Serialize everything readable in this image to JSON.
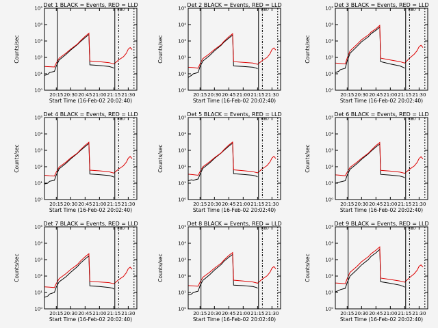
{
  "chart_data": {
    "type": "line",
    "layout": "3x3 grid of panels",
    "yscale": "log",
    "ylim": [
      1,
      100000
    ],
    "ytick_labels": [
      "10⁰",
      "10¹",
      "10²",
      "10³",
      "10⁴",
      "10⁵"
    ],
    "xtick_labels": [
      "20:15",
      "20:30",
      "20:45",
      "21:00",
      "21:15",
      "21:30"
    ],
    "xlabel": "Start Time (16-Feb-02 20:02:40)",
    "ylabel": "Counts/sec",
    "marker_labels": [
      "ED",
      "ED"
    ],
    "colors": {
      "events": "#000000",
      "lld": "#dd0000",
      "axes": "#000000",
      "background": "#f4f4f4"
    },
    "panels": [
      {
        "title": "Det 1 BLACK = Events, RED = LLD",
        "series": [
          {
            "name": "BLACK = Events",
            "color": "#000000",
            "x": [
              "20:02:40",
              "20:06",
              "20:08",
              "20:13",
              "20:15",
              "20:18",
              "20:25",
              "20:30",
              "20:37",
              "20:40",
              "20:45",
              "20:49",
              "20:50",
              "21:00",
              "21:10",
              "21:14",
              "21:15"
            ],
            "y": [
              8,
              9,
              12,
              14,
              30,
              70,
              150,
              280,
              600,
              900,
              1600,
              2500,
              35,
              32,
              28,
              24,
              22
            ]
          },
          {
            "name": "RED = LLD",
            "color": "#dd0000",
            "x": [
              "20:02:40",
              "20:08",
              "20:13",
              "20:15",
              "20:18",
              "20:25",
              "20:30",
              "20:37",
              "20:40",
              "20:45",
              "20:49",
              "20:50",
              "21:00",
              "21:10",
              "21:15",
              "21:20",
              "21:25",
              "21:28",
              "21:30",
              "21:32",
              "21:34"
            ],
            "y": [
              28,
              27,
              26,
              45,
              90,
              180,
              320,
              650,
              1000,
              1900,
              3000,
              60,
              55,
              48,
              40,
              70,
              110,
              180,
              320,
              400,
              300
            ]
          }
        ]
      },
      {
        "title": "Det 2 BLACK = Events, RED = LLD",
        "series": [
          {
            "name": "BLACK = Events",
            "color": "#000000",
            "x": [
              "20:02:40",
              "20:06",
              "20:08",
              "20:13",
              "20:15",
              "20:18",
              "20:25",
              "20:30",
              "20:37",
              "20:40",
              "20:45",
              "20:49",
              "20:50",
              "21:00",
              "21:10",
              "21:14",
              "21:15"
            ],
            "y": [
              6,
              8,
              10,
              12,
              28,
              60,
              130,
              250,
              550,
              850,
              1500,
              2300,
              30,
              28,
              25,
              22,
              20
            ]
          },
          {
            "name": "RED = LLD",
            "color": "#dd0000",
            "x": [
              "20:02:40",
              "20:08",
              "20:13",
              "20:15",
              "20:18",
              "20:25",
              "20:30",
              "20:37",
              "20:40",
              "20:45",
              "20:49",
              "20:50",
              "21:00",
              "21:10",
              "21:15",
              "21:20",
              "21:25",
              "21:28",
              "21:30",
              "21:32",
              "21:34"
            ],
            "y": [
              25,
              24,
              22,
              40,
              85,
              170,
              300,
              600,
              950,
              1800,
              2800,
              55,
              50,
              45,
              38,
              65,
              100,
              170,
              300,
              380,
              280
            ]
          }
        ]
      },
      {
        "title": "Det 3 BLACK = Events, RED = LLD",
        "series": [
          {
            "name": "BLACK = Events",
            "color": "#000000",
            "x": [
              "20:02:40",
              "20:06",
              "20:08",
              "20:13",
              "20:15",
              "20:18",
              "20:25",
              "20:30",
              "20:37",
              "20:40",
              "20:45",
              "20:49",
              "20:50",
              "21:00",
              "21:10",
              "21:14",
              "21:15"
            ],
            "y": [
              12,
              14,
              18,
              22,
              60,
              180,
              450,
              900,
              1800,
              2800,
              4500,
              7000,
              55,
              40,
              30,
              24,
              22
            ]
          },
          {
            "name": "RED = LLD",
            "color": "#dd0000",
            "x": [
              "20:02:40",
              "20:08",
              "20:13",
              "20:15",
              "20:18",
              "20:25",
              "20:30",
              "20:37",
              "20:40",
              "20:45",
              "20:49",
              "20:50",
              "21:00",
              "21:10",
              "21:15",
              "21:20",
              "21:25",
              "21:28",
              "21:30",
              "21:32",
              "21:34"
            ],
            "y": [
              45,
              42,
              40,
              90,
              250,
              600,
              1200,
              2300,
              3500,
              5500,
              9000,
              90,
              70,
              55,
              45,
              90,
              160,
              260,
              450,
              550,
              400
            ]
          }
        ]
      },
      {
        "title": "Det 4 BLACK = Events, RED = LLD",
        "series": [
          {
            "name": "BLACK = Events",
            "color": "#000000",
            "x": [
              "20:02:40",
              "20:06",
              "20:08",
              "20:13",
              "20:15",
              "20:18",
              "20:25",
              "20:30",
              "20:37",
              "20:40",
              "20:45",
              "20:49",
              "20:50",
              "21:00",
              "21:10",
              "21:14",
              "21:15"
            ],
            "y": [
              9,
              10,
              13,
              15,
              32,
              75,
              160,
              300,
              650,
              950,
              1700,
              2600,
              36,
              33,
              29,
              25,
              23
            ]
          },
          {
            "name": "RED = LLD",
            "color": "#dd0000",
            "x": [
              "20:02:40",
              "20:08",
              "20:13",
              "20:15",
              "20:18",
              "20:25",
              "20:30",
              "20:37",
              "20:40",
              "20:45",
              "20:49",
              "20:50",
              "21:00",
              "21:10",
              "21:15",
              "21:20",
              "21:25",
              "21:28",
              "21:30",
              "21:32",
              "21:34"
            ],
            "y": [
              30,
              28,
              27,
              48,
              95,
              190,
              340,
              680,
              1050,
              2000,
              3100,
              62,
              56,
              49,
              41,
              72,
              115,
              190,
              330,
              420,
              310
            ]
          }
        ]
      },
      {
        "title": "Det 5 BLACK = Events, RED = LLD",
        "series": [
          {
            "name": "BLACK = Events",
            "color": "#000000",
            "x": [
              "20:02:40",
              "20:06",
              "20:08",
              "20:13",
              "20:15",
              "20:18",
              "20:25",
              "20:30",
              "20:37",
              "20:40",
              "20:45",
              "20:49",
              "20:50",
              "21:00",
              "21:10",
              "21:14",
              "21:15"
            ],
            "y": [
              14,
              16,
              15,
              18,
              35,
              80,
              170,
              320,
              680,
              1000,
              1800,
              2700,
              38,
              34,
              30,
              26,
              24
            ]
          },
          {
            "name": "RED = LLD",
            "color": "#dd0000",
            "x": [
              "20:02:40",
              "20:08",
              "20:13",
              "20:15",
              "20:18",
              "20:25",
              "20:30",
              "20:37",
              "20:40",
              "20:45",
              "20:49",
              "20:50",
              "21:00",
              "21:10",
              "21:15",
              "21:20",
              "21:25",
              "21:28",
              "21:30",
              "21:32",
              "21:34"
            ],
            "y": [
              35,
              33,
              30,
              50,
              100,
              200,
              350,
              700,
              1100,
              2100,
              3200,
              65,
              58,
              50,
              42,
              75,
              120,
              200,
              340,
              430,
              320
            ]
          }
        ]
      },
      {
        "title": "Det 6 BLACK = Events, RED = LLD",
        "series": [
          {
            "name": "BLACK = Events",
            "color": "#000000",
            "x": [
              "20:02:40",
              "20:06",
              "20:08",
              "20:13",
              "20:15",
              "20:18",
              "20:25",
              "20:30",
              "20:37",
              "20:40",
              "20:45",
              "20:49",
              "20:50",
              "21:00",
              "21:10",
              "21:14",
              "21:15"
            ],
            "y": [
              10,
              11,
              12,
              14,
              30,
              70,
              150,
              280,
              600,
              900,
              1600,
              2400,
              34,
              31,
              27,
              23,
              21
            ]
          },
          {
            "name": "RED = LLD",
            "color": "#dd0000",
            "x": [
              "20:02:40",
              "20:08",
              "20:13",
              "20:15",
              "20:18",
              "20:25",
              "20:30",
              "20:37",
              "20:40",
              "20:45",
              "20:49",
              "20:50",
              "21:00",
              "21:10",
              "21:15",
              "21:20",
              "21:25",
              "21:28",
              "21:30",
              "21:32",
              "21:34"
            ],
            "y": [
              32,
              30,
              28,
              46,
              92,
              185,
              330,
              660,
              1000,
              1950,
              3000,
              60,
              54,
              47,
              40,
              70,
              112,
              185,
              320,
              410,
              300
            ]
          }
        ]
      },
      {
        "title": "Det 7 BLACK = Events, RED = LLD",
        "series": [
          {
            "name": "BLACK = Events",
            "color": "#000000",
            "x": [
              "20:02:40",
              "20:06",
              "20:08",
              "20:13",
              "20:15",
              "20:18",
              "20:25",
              "20:30",
              "20:37",
              "20:40",
              "20:45",
              "20:49",
              "20:50",
              "21:00",
              "21:10",
              "21:14",
              "21:15"
            ],
            "y": [
              5,
              6,
              8,
              10,
              22,
              45,
              90,
              170,
              380,
              600,
              1100,
              1700,
              25,
              23,
              20,
              18,
              16
            ]
          },
          {
            "name": "RED = LLD",
            "color": "#dd0000",
            "x": [
              "20:02:40",
              "20:08",
              "20:13",
              "20:15",
              "20:18",
              "20:25",
              "20:30",
              "20:37",
              "20:40",
              "20:45",
              "20:49",
              "20:50",
              "21:00",
              "21:10",
              "21:15",
              "21:20",
              "21:25",
              "21:28",
              "21:30",
              "21:32",
              "21:34"
            ],
            "y": [
              22,
              21,
              20,
              35,
              70,
              140,
              250,
              500,
              800,
              1500,
              2300,
              48,
              44,
              40,
              34,
              60,
              95,
              160,
              280,
              350,
              260
            ]
          }
        ]
      },
      {
        "title": "Det 8 BLACK = Events, RED = LLD",
        "series": [
          {
            "name": "BLACK = Events",
            "color": "#000000",
            "x": [
              "20:02:40",
              "20:06",
              "20:08",
              "20:13",
              "20:15",
              "20:18",
              "20:25",
              "20:30",
              "20:37",
              "20:40",
              "20:45",
              "20:49",
              "20:50",
              "21:00",
              "21:10",
              "21:14",
              "21:15"
            ],
            "y": [
              7,
              8,
              10,
              12,
              26,
              55,
              120,
              230,
              500,
              800,
              1400,
              2100,
              28,
              26,
              23,
              20,
              18
            ]
          },
          {
            "name": "RED = LLD",
            "color": "#dd0000",
            "x": [
              "20:02:40",
              "20:08",
              "20:13",
              "20:15",
              "20:18",
              "20:25",
              "20:30",
              "20:37",
              "20:40",
              "20:45",
              "20:49",
              "20:50",
              "21:00",
              "21:10",
              "21:15",
              "21:20",
              "21:25",
              "21:28",
              "21:30",
              "21:32",
              "21:34"
            ],
            "y": [
              26,
              25,
              24,
              42,
              85,
              170,
              300,
              600,
              950,
              1800,
              2700,
              56,
              50,
              44,
              37,
              66,
              105,
              175,
              300,
              380,
              280
            ]
          }
        ]
      },
      {
        "title": "Det 9 BLACK = Events, RED = LLD",
        "series": [
          {
            "name": "BLACK = Events",
            "color": "#000000",
            "x": [
              "20:02:40",
              "20:06",
              "20:08",
              "20:13",
              "20:15",
              "20:18",
              "20:25",
              "20:30",
              "20:37",
              "20:40",
              "20:45",
              "20:49",
              "20:50",
              "21:00",
              "21:10",
              "21:14",
              "21:15"
            ],
            "y": [
              11,
              13,
              15,
              18,
              40,
              100,
              240,
              480,
              1000,
              1600,
              2600,
              4200,
              45,
              36,
              28,
              23,
              21
            ]
          },
          {
            "name": "RED = LLD",
            "color": "#dd0000",
            "x": [
              "20:02:40",
              "20:08",
              "20:13",
              "20:15",
              "20:18",
              "20:25",
              "20:30",
              "20:37",
              "20:40",
              "20:45",
              "20:49",
              "20:50",
              "21:00",
              "21:10",
              "21:15",
              "21:20",
              "21:25",
              "21:28",
              "21:30",
              "21:32",
              "21:34"
            ],
            "y": [
              38,
              36,
              34,
              70,
              170,
              380,
              750,
              1500,
              2300,
              3800,
              6000,
              75,
              62,
              50,
              42,
              80,
              140,
              230,
              400,
              480,
              350
            ]
          }
        ]
      }
    ]
  }
}
